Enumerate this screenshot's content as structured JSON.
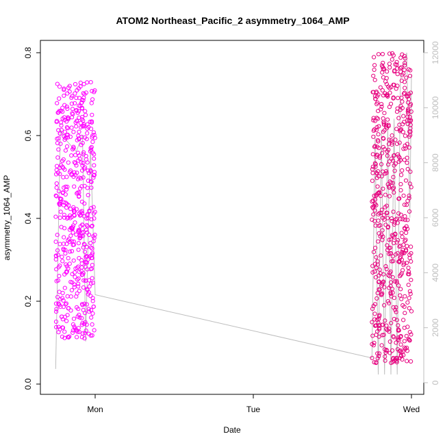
{
  "chart_data": {
    "type": "scatter",
    "title": "ATOM2 Northeast_Pacific_2 asymmetry_1064_AMP",
    "xlabel": "Date",
    "ylabel": "asymmetry_1064_AMP",
    "x_ticks": [
      "Mon",
      "Tue",
      "Wed"
    ],
    "y_ticks": [
      "0.0",
      "0.2",
      "0.4",
      "0.6",
      "0.8"
    ],
    "y2_ticks": [
      "0",
      "2000",
      "4000",
      "6000",
      "8000",
      "10000",
      "12000"
    ],
    "ylim": [
      0.0,
      0.8
    ],
    "y2lim": [
      0,
      12000
    ],
    "xlim_days": [
      -0.29,
      2.07
    ],
    "colors": {
      "points_early": "#ff00ff",
      "points_late": "#e6007e",
      "altitude_line": "#bdbdbd"
    },
    "series": [
      {
        "type": "scatter",
        "segments": [
          {
            "start": -0.25,
            "end": 0.0,
            "min": 0.11,
            "max": 0.73,
            "n": 520
          },
          {
            "start": 1.75,
            "end": 2.0,
            "min": 0.05,
            "max": 0.8,
            "n": 560
          }
        ]
      },
      {
        "type": "line",
        "axis": "right",
        "points": [
          [
            -0.25,
            500
          ],
          [
            -0.22,
            9200
          ],
          [
            -0.18,
            8800
          ],
          [
            -0.12,
            8400
          ],
          [
            -0.08,
            9000
          ],
          [
            -0.06,
            1500
          ],
          [
            -0.03,
            8600
          ],
          [
            0.0,
            3200
          ],
          [
            1.75,
            900
          ],
          [
            1.77,
            9000
          ],
          [
            1.79,
            300
          ],
          [
            1.81,
            9200
          ],
          [
            1.83,
            300
          ],
          [
            1.85,
            9400
          ],
          [
            1.87,
            300
          ],
          [
            1.89,
            9600
          ],
          [
            1.91,
            300
          ],
          [
            1.93,
            11000
          ],
          [
            1.97,
            12000
          ],
          [
            1.99,
            6000
          ],
          [
            2.0,
            11200
          ]
        ]
      }
    ]
  }
}
